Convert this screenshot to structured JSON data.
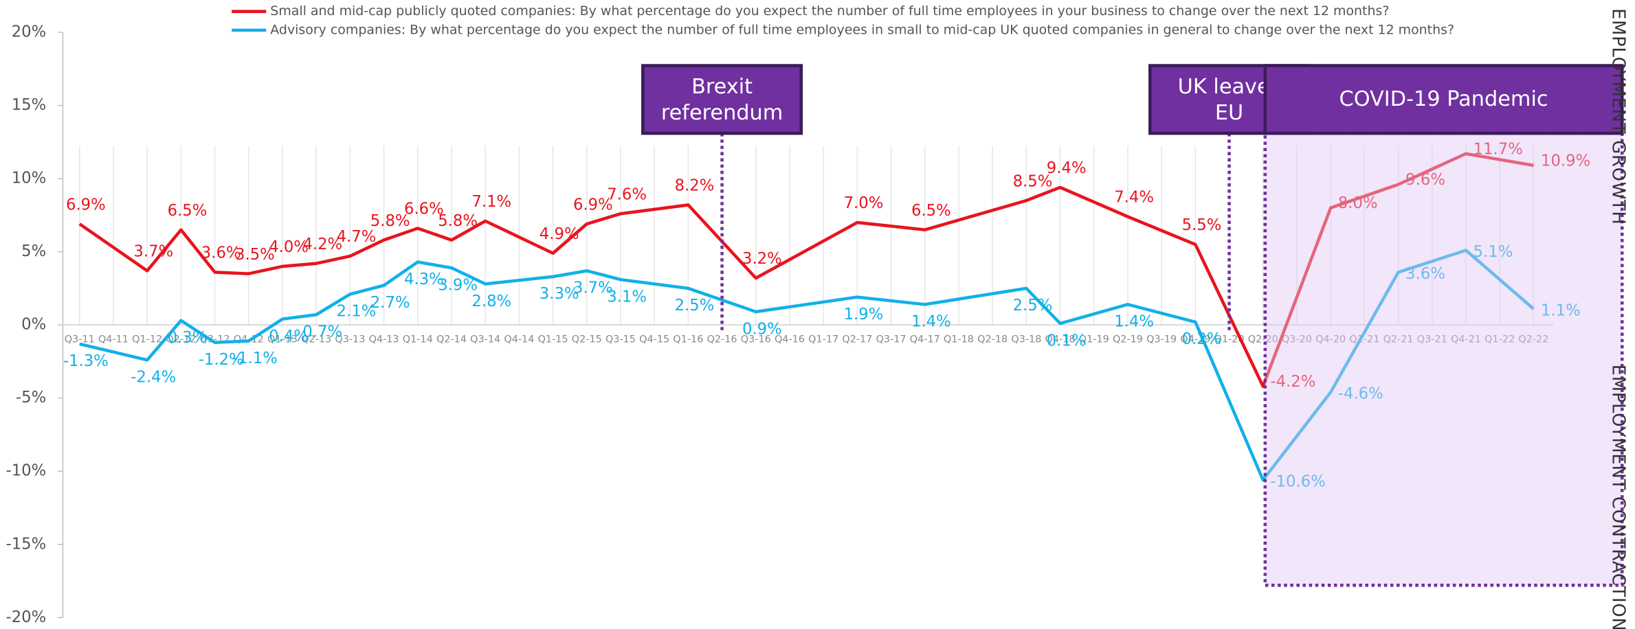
{
  "chart_data": {
    "type": "line",
    "categories": [
      "Q3-11",
      "Q4-11",
      "Q1-12",
      "Q2-12",
      "Q3-12",
      "Q4-12",
      "Q1-13",
      "Q2-13",
      "Q3-13",
      "Q4-13",
      "Q1-14",
      "Q2-14",
      "Q3-14",
      "Q4-14",
      "Q1-15",
      "Q2-15",
      "Q3-15",
      "Q4-15",
      "Q1-16",
      "Q2-16",
      "Q3-16",
      "Q4-16",
      "Q1-17",
      "Q2-17",
      "Q3-17",
      "Q4-17",
      "Q1-18",
      "Q2-18",
      "Q3-18",
      "Q4-18",
      "Q1-19",
      "Q2-19",
      "Q3-19",
      "Q4-19",
      "Q1-20",
      "Q2-20",
      "Q3-20",
      "Q4-20",
      "Q1-21",
      "Q2-21",
      "Q3-21",
      "Q4-21",
      "Q1-22",
      "Q2-22"
    ],
    "series": [
      {
        "name": "Small and mid-cap publicly quoted companies:  By what percentage do you expect the number of full time employees in your business to change over the next 12 months?",
        "color": "#e8141e",
        "values": [
          6.9,
          null,
          3.7,
          6.5,
          3.6,
          3.5,
          4.0,
          4.2,
          4.7,
          5.8,
          6.6,
          5.8,
          7.1,
          null,
          4.9,
          6.9,
          7.6,
          null,
          8.2,
          null,
          3.2,
          null,
          null,
          7.0,
          null,
          6.5,
          null,
          null,
          8.5,
          9.4,
          null,
          7.4,
          null,
          5.5,
          null,
          -4.2,
          null,
          8.0,
          null,
          9.6,
          null,
          11.7,
          null,
          10.9
        ],
        "value_labels": [
          "6.9%",
          null,
          "3.7%",
          "6.5%",
          "3.6%",
          "3.5%",
          "4.0%",
          "4.2%",
          "4.7%",
          "5.8%",
          "6.6%",
          "5.8%",
          "7.1%",
          null,
          "4.9%",
          "6.9%",
          "7.6%",
          null,
          "8.2%",
          null,
          "3.2%",
          null,
          null,
          "7.0%",
          null,
          "6.5%",
          null,
          null,
          "8.5%",
          "9.4%",
          null,
          "7.4%",
          null,
          "5.5%",
          null,
          "-4.2%",
          null,
          "8.0%",
          null,
          "9.6%",
          null,
          "11.7%",
          null,
          "10.9%"
        ]
      },
      {
        "name": "Advisory companies: By what percentage do you expect the number of full time employees in small to mid-cap UK quoted companies in general to change over the next 12 months?",
        "color": "#12b0e8",
        "values": [
          -1.3,
          null,
          -2.4,
          0.3,
          -1.2,
          -1.1,
          0.4,
          0.7,
          2.1,
          2.7,
          4.3,
          3.9,
          2.8,
          null,
          3.3,
          3.7,
          3.1,
          null,
          2.5,
          null,
          0.9,
          null,
          null,
          1.9,
          null,
          1.4,
          null,
          null,
          2.5,
          0.1,
          null,
          1.4,
          null,
          0.2,
          null,
          -10.6,
          null,
          -4.6,
          null,
          3.6,
          null,
          5.1,
          null,
          1.1
        ],
        "value_labels": [
          "-1.3%",
          null,
          "-2.4%",
          "0.3%",
          "-1.2%",
          "-1.1%",
          "0.4%",
          "0.7%",
          "2.1%",
          "2.7%",
          "4.3%",
          "3.9%",
          "2.8%",
          null,
          "3.3%",
          "3.7%",
          "3.1%",
          null,
          "2.5%",
          null,
          "0.9%",
          null,
          null,
          "1.9%",
          null,
          "1.4%",
          null,
          null,
          "2.5%",
          "0.1%",
          null,
          "1.4%",
          null,
          "0.2%",
          null,
          "-10.6%",
          null,
          "-4.6%",
          null,
          "3.6%",
          null,
          "5.1%",
          null,
          "1.1%"
        ]
      }
    ],
    "connect_gaps": true,
    "ylim": [
      -20,
      20
    ],
    "yticks": [
      {
        "value": -20,
        "label": "-20%"
      },
      {
        "value": -15,
        "label": "-15%"
      },
      {
        "value": -10,
        "label": "-10%"
      },
      {
        "value": -5,
        "label": "-5%"
      },
      {
        "value": 0,
        "label": "0%"
      },
      {
        "value": 5,
        "label": "5%"
      },
      {
        "value": 10,
        "label": "10%"
      },
      {
        "value": 15,
        "label": "15%"
      },
      {
        "value": 20,
        "label": "20%"
      }
    ],
    "annotations": [
      {
        "lines": [
          "Brexit",
          "referendum"
        ],
        "at": "Q2-16"
      },
      {
        "lines": [
          "UK leaves",
          "EU"
        ],
        "at": "Q1-20"
      },
      {
        "lines": [
          "COVID-19 Pandemic"
        ],
        "from": "Q2-20"
      }
    ],
    "side_labels": [
      "EMPLOYMENT GROWTH",
      "EMPLOYMENT CONTRACTION"
    ]
  }
}
